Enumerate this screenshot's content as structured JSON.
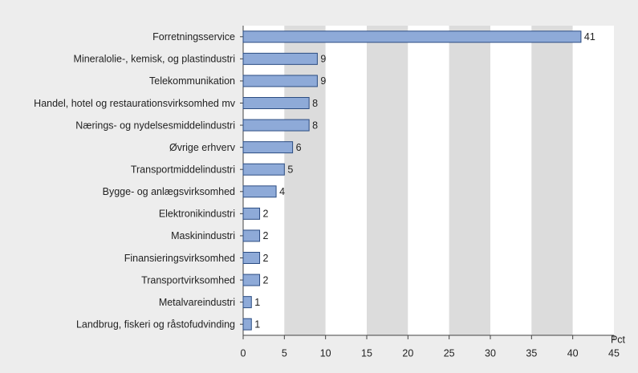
{
  "chart_data": {
    "type": "bar",
    "orientation": "horizontal",
    "x_label": "Pct",
    "categories": [
      "Forretningsservice",
      "Mineralolie-, kemisk, og plastindustri",
      "Telekommunikation",
      "Handel, hotel og restaurationsvirksomhed mv",
      "Nærings- og nydelsesmiddelindustri",
      "Øvrige erhverv",
      "Transportmiddelindustri",
      "Bygge- og anlægsvirksomhed",
      "Elektronikindustri",
      "Maskinindustri",
      "Finansieringsvirksomhed",
      "Transportvirksomhed",
      "Metalvareindustri",
      "Landbrug, fiskeri og råstofudvinding"
    ],
    "values": [
      41,
      9,
      9,
      8,
      8,
      6,
      5,
      4,
      2,
      2,
      2,
      2,
      1,
      1
    ],
    "color": "#8eaad8",
    "xlim": [
      0,
      45
    ],
    "xticks": [
      0,
      5,
      10,
      15,
      20,
      25,
      30,
      35,
      40,
      45
    ],
    "grid": true
  }
}
